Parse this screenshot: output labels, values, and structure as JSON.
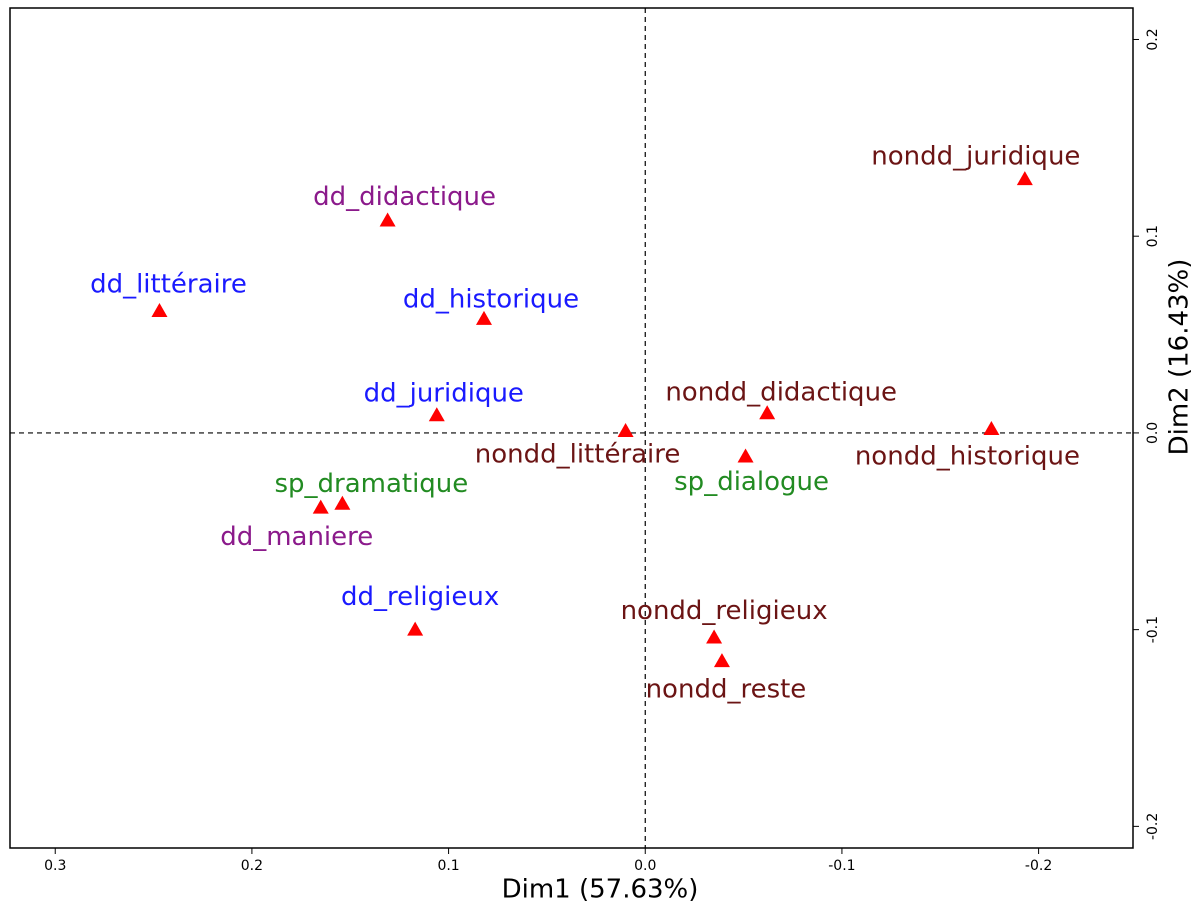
{
  "chart_data": {
    "type": "scatter",
    "xlabel": "Dim1 (57.63%)",
    "ylabel": "Dim2 (16.43%)",
    "labels": [
      "dd_littéraire",
      "dd_didactique",
      "dd_historique",
      "dd_juridique",
      "nondd_juridique",
      "nondd_didactique",
      "nondd_littéraire",
      "nondd_historique",
      "sp_dialogue",
      "sp_dramatique",
      "dd_maniere",
      "dd_religieux",
      "nondd_religieux",
      "nondd_reste"
    ],
    "x": [
      0.247,
      0.131,
      0.082,
      0.106,
      -0.193,
      -0.062,
      0.01,
      -0.176,
      -0.051,
      0.154,
      0.165,
      0.117,
      -0.035,
      -0.039
    ],
    "y": [
      0.062,
      0.108,
      0.058,
      0.009,
      0.129,
      0.01,
      0.001,
      0.002,
      -0.012,
      -0.036,
      -0.038,
      -0.1,
      -0.104,
      -0.116
    ],
    "label_colors": [
      "#1a1aff",
      "#8b1a8b",
      "#1a1aff",
      "#1a1aff",
      "#6b1414",
      "#6b1414",
      "#6b1414",
      "#6b1414",
      "#228b22",
      "#228b22",
      "#8b1a8b",
      "#1a1aff",
      "#6b1414",
      "#6b1414"
    ],
    "marker_color": "#ff0000",
    "xlim": [
      0.323,
      -0.248
    ],
    "ylim": [
      -0.211,
      0.216
    ],
    "xticks": [
      0.3,
      0.2,
      0.1,
      {
        "value": 0,
        "label": "0.0"
      },
      -0.1,
      -0.2
    ],
    "yticks": [
      -0.2,
      -0.1,
      {
        "value": 0,
        "label": "0.0"
      },
      0.1,
      0.2
    ],
    "reference_lines": {
      "x": 0,
      "y": 0
    }
  }
}
